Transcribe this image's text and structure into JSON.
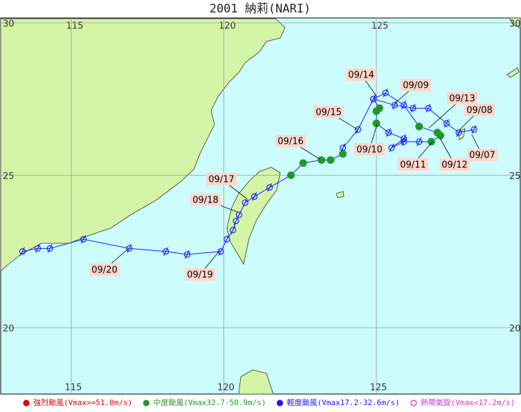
{
  "title": "2001 納莉(NARI)",
  "map": {
    "lon_ticks": [
      115,
      120,
      125
    ],
    "lat_ticks": [
      30,
      25,
      20
    ],
    "grid": true
  },
  "track": {
    "line_color": "#1a1aff",
    "lon": [
      128.2,
      127.7,
      127.3,
      126.7,
      126.2,
      125.6,
      124.9,
      125.3,
      125.9,
      126.4,
      127.0,
      127.1,
      126.8,
      126.4,
      125.9,
      125.5,
      125.9,
      125.4,
      125.0,
      125.0,
      125.1,
      124.9,
      124.4,
      123.9,
      123.9,
      123.5,
      123.2,
      122.6,
      122.2,
      121.5,
      121.0,
      120.7,
      120.5,
      120.4,
      120.3,
      120.1,
      119.9,
      118.8,
      118.1,
      116.9,
      115.4,
      114.3,
      113.9,
      113.4
    ],
    "lat": [
      26.5,
      26.4,
      26.7,
      27.2,
      27.2,
      27.3,
      27.5,
      27.7,
      27.3,
      26.6,
      26.4,
      26.3,
      26.1,
      26.1,
      26.1,
      25.9,
      26.2,
      26.4,
      26.7,
      27.1,
      27.2,
      27.5,
      26.5,
      25.9,
      25.7,
      25.5,
      25.5,
      25.4,
      25.0,
      24.6,
      24.3,
      24.1,
      23.7,
      23.5,
      23.2,
      22.9,
      22.5,
      22.4,
      22.5,
      22.6,
      22.9,
      22.6,
      22.6,
      22.5
    ],
    "colors": [
      "#1a1aff",
      "#1a1aff",
      "#1a1aff",
      "#1a1aff",
      "#1a1aff",
      "#1a1aff",
      "#1a1aff",
      "#1a1aff",
      "#1a1aff",
      "#22982a",
      "#22982a",
      "#22982a",
      "#22982a",
      "#1a1aff",
      "#1a1aff",
      "#1a1aff",
      "#1a1aff",
      "#1a1aff",
      "#22982a",
      "#22982a",
      "#22982a",
      "#1a1aff",
      "#1a1aff",
      "#1a1aff",
      "#22982a",
      "#22982a",
      "#22982a",
      "#22982a",
      "#22982a",
      "#1a1aff",
      "#1a1aff",
      "#1a1aff",
      "#1a1aff",
      "#1a1aff",
      "#1a1aff",
      "#1a1aff",
      "#1a1aff",
      "#1a1aff",
      "#1a1aff",
      "#1a1aff",
      "#1a1aff",
      "#1a1aff",
      "#1a1aff",
      "#1a1aff"
    ]
  },
  "date_labels": [
    "09/14",
    "09/09",
    "09/13",
    "09/08",
    "09/15",
    "09/16",
    "09/10",
    "09/11",
    "09/12",
    "09/07",
    "09/17",
    "09/18",
    "09/19",
    "09/20"
  ],
  "legend": [
    {
      "label": "強烈颱風(Vmax>=51.0m/s)",
      "color": "#e00000"
    },
    {
      "label": "中度颱風(Vmax32.7-50.9m/s)",
      "color": "#22982a"
    },
    {
      "label": "輕度颱風(Vmax17.2-32.6m/s)",
      "color": "#1a1aff"
    },
    {
      "label": "熱帶氣旋(Vmax<17.2m/s)",
      "color": "#cc33cc"
    }
  ]
}
